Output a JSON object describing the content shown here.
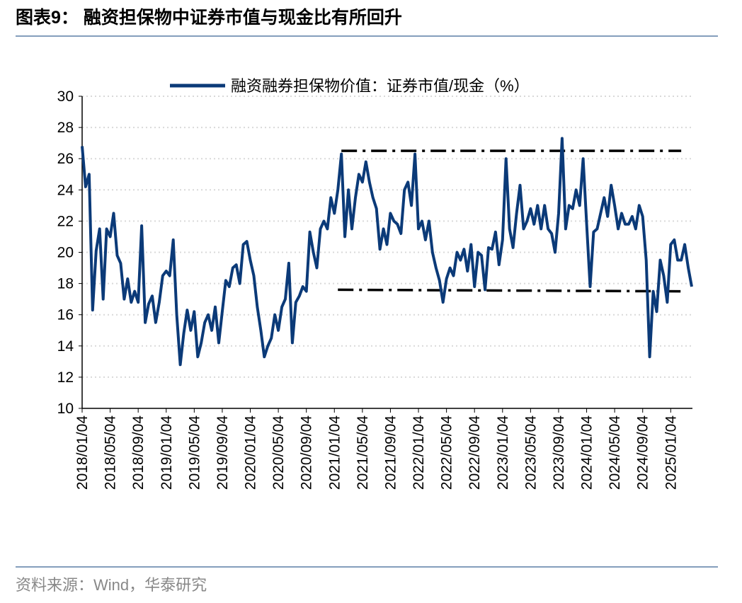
{
  "chart_data": {
    "type": "line",
    "title": "图表9： 融资担保物中证券市值与现金比有所回升",
    "source": "资料来源：Wind，华泰研究",
    "categories": [
      "2018/01/04",
      null,
      null,
      null,
      null,
      null,
      null,
      null,
      "2018/05/04",
      null,
      null,
      null,
      null,
      null,
      null,
      null,
      "2018/09/04",
      null,
      null,
      null,
      null,
      null,
      null,
      null,
      "2019/01/04",
      null,
      null,
      null,
      null,
      null,
      null,
      null,
      "2019/05/04",
      null,
      null,
      null,
      null,
      null,
      null,
      null,
      "2019/09/04",
      null,
      null,
      null,
      null,
      null,
      null,
      null,
      "2020/01/04",
      null,
      null,
      null,
      null,
      null,
      null,
      null,
      "2020/05/04",
      null,
      null,
      null,
      null,
      null,
      null,
      null,
      "2020/09/04",
      null,
      null,
      null,
      null,
      null,
      null,
      null,
      "2021/01/04",
      null,
      null,
      null,
      null,
      null,
      null,
      null,
      "2021/05/04",
      null,
      null,
      null,
      null,
      null,
      null,
      null,
      "2021/09/04",
      null,
      null,
      null,
      null,
      null,
      null,
      null,
      "2022/01/04",
      null,
      null,
      null,
      null,
      null,
      null,
      null,
      "2022/05/04",
      null,
      null,
      null,
      null,
      null,
      null,
      null,
      "2022/09/04",
      null,
      null,
      null,
      null,
      null,
      null,
      null,
      "2023/01/04",
      null,
      null,
      null,
      null,
      null,
      null,
      null,
      "2023/05/04",
      null,
      null,
      null,
      null,
      null,
      null,
      null,
      "2023/09/04",
      null,
      null,
      null,
      null,
      null,
      null,
      null,
      "2024/01/04",
      null,
      null,
      null,
      null,
      null,
      null,
      null,
      "2024/05/04",
      null,
      null,
      null,
      null,
      null,
      null,
      null,
      "2024/09/04",
      null,
      null,
      null,
      null,
      null,
      null,
      null,
      "2025/01/04",
      null,
      null,
      null,
      null,
      null,
      null
    ],
    "series": [
      {
        "name": "融资融券担保物价值：证券市值/现金（%）",
        "color": "#0b3a78",
        "values": [
          26.8,
          24.2,
          25,
          16.3,
          20.1,
          21.5,
          17,
          21.5,
          21,
          22.5,
          19.8,
          19.3,
          17,
          18.3,
          16.8,
          17.5,
          16.8,
          21.7,
          15.5,
          16.7,
          17.2,
          15.5,
          16.8,
          18.5,
          18.8,
          18.5,
          20.8,
          16,
          12.8,
          14.8,
          16.3,
          15,
          16.2,
          13.3,
          14.2,
          15.5,
          16,
          15,
          16.5,
          14.2,
          16.2,
          18.2,
          17.8,
          19,
          19.2,
          18,
          20.5,
          20.7,
          19.5,
          18.5,
          16.5,
          15,
          13.3,
          14,
          14.5,
          16,
          15,
          16.5,
          17,
          19.3,
          14.2,
          16.8,
          17.2,
          17.8,
          17.5,
          21.3,
          20,
          19,
          21.5,
          22,
          21.5,
          23.5,
          22.5,
          24,
          26.3,
          21,
          24,
          21.5,
          23.5,
          25,
          24.5,
          25.8,
          24.5,
          23.5,
          22.8,
          20.2,
          21.5,
          20.5,
          22.5,
          22,
          21.8,
          21.2,
          24,
          24.5,
          23,
          26.3,
          21.5,
          22,
          20.8,
          22,
          20,
          19,
          18.2,
          16.8,
          18.3,
          19,
          18.5,
          20,
          19.5,
          20.2,
          18.8,
          20.5,
          17.8,
          20,
          19.8,
          17.6,
          20.3,
          20.2,
          21.3,
          19.2,
          20.8,
          26,
          21.5,
          20.3,
          22.5,
          24.3,
          21.5,
          22,
          22.8,
          21.8,
          23,
          21.5,
          23,
          21.5,
          21.2,
          20,
          22.5,
          27.3,
          21.5,
          23,
          22.8,
          24,
          23,
          26,
          21.8,
          17.8,
          21.3,
          21.5,
          22.5,
          23.5,
          22.3,
          24.3,
          23,
          21.5,
          22.5,
          21.8,
          21.8,
          22.3,
          21.5,
          23,
          22.3,
          19.5,
          13.3,
          17.5,
          16.2,
          19.5,
          18.5,
          16.8,
          20.5,
          20.8,
          19.5,
          19.5,
          20.5,
          19,
          17.8
        ]
      }
    ],
    "reference_lines": [
      {
        "start": 74,
        "end": 171,
        "y": [
          26.5,
          26.5
        ]
      },
      {
        "start": 73,
        "end": 171,
        "y": [
          17.6,
          17.5
        ]
      }
    ],
    "ylim": [
      10,
      30
    ],
    "yticks": [
      10,
      12,
      14,
      16,
      18,
      20,
      22,
      24,
      26,
      28,
      30
    ],
    "grid": true,
    "legend": "top"
  }
}
